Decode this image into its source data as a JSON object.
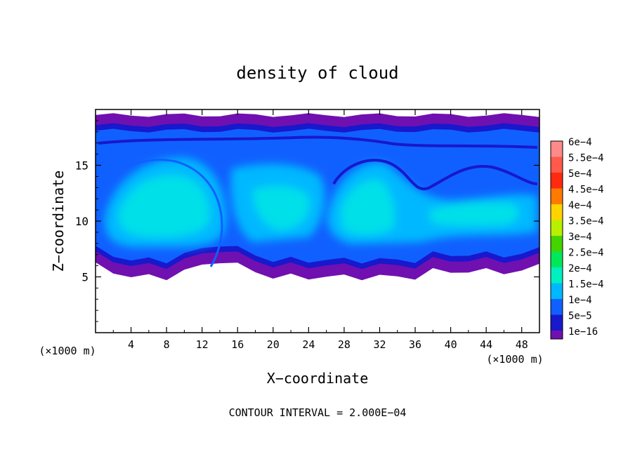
{
  "chart_data": {
    "type": "heatmap",
    "title": "density of cloud",
    "xlabel": "X−coordinate",
    "ylabel": "Z−coordinate",
    "x_unit_left": "(×1000 m)",
    "x_unit_right": "(×1000 m)",
    "footer": "CONTOUR INTERVAL = 2.000E−04",
    "xlim": [
      0,
      50
    ],
    "ylim": [
      0,
      20
    ],
    "x_ticks": [
      4,
      8,
      12,
      16,
      20,
      24,
      28,
      32,
      36,
      40,
      44,
      48
    ],
    "x_tick_labels": [
      "4",
      "8",
      "12",
      "16",
      "20",
      "24",
      "28",
      "32",
      "36",
      "40",
      "44",
      "48"
    ],
    "y_ticks": [
      5,
      10,
      15
    ],
    "y_tick_labels": [
      "5",
      "10",
      "15"
    ],
    "colorbar": {
      "levels": [
        "6e−4",
        "5.5e−4",
        "5e−4",
        "4.5e−4",
        "4e−4",
        "3.5e−4",
        "3e−4",
        "2.5e−4",
        "2e−4",
        "1.5e−4",
        "1e−4",
        "5e−5",
        "1e−16"
      ],
      "colors": [
        "#ff8a8a",
        "#ff5a4a",
        "#ff2a10",
        "#ff7a00",
        "#ffd400",
        "#b8f000",
        "#44d400",
        "#00e85a",
        "#00f0c0",
        "#00b8ff",
        "#1060ff",
        "#1818cc",
        "#7010b0"
      ]
    },
    "field": {
      "cloud_base_km": [
        6.0,
        5.5,
        5.0,
        5.0,
        5.0,
        5.5,
        6.0,
        6.5,
        6.0,
        5.5,
        5.0,
        5.0,
        5.0,
        5.0,
        5.0,
        5.0,
        5.0,
        5.0,
        5.0,
        5.5,
        5.5,
        5.5,
        5.5,
        5.5,
        5.5,
        6.0
      ],
      "cloud_top_km": [
        19.5,
        19.5,
        19.5,
        19.5,
        19.5,
        19.5,
        19.5,
        19.5,
        19.5,
        19.5,
        19.5,
        19.5,
        19.5,
        19.5,
        19.5,
        19.5,
        19.5,
        19.5,
        19.5,
        19.5,
        19.5,
        19.5,
        19.5,
        19.5,
        19.5,
        19.5
      ],
      "max_density": 0.0002
    }
  }
}
